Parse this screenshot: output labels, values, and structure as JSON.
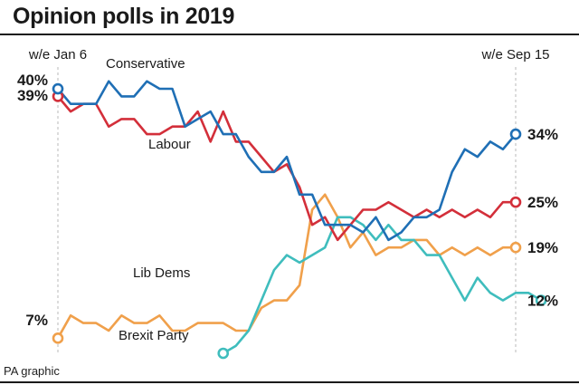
{
  "title": "Opinion polls in 2019",
  "source": "PA graphic",
  "chart_data": {
    "type": "line",
    "title": "Opinion polls in 2019",
    "x_start_label": "w/e Jan 6",
    "x_end_label": "w/e Sep 15",
    "weeks": 37,
    "ylim": [
      5,
      43
    ],
    "series": [
      {
        "name": "Conservative",
        "color": "#1f6fb5",
        "start": 0,
        "start_label": "40%",
        "end_label": "34%",
        "values": [
          40,
          38,
          38,
          38,
          41,
          39,
          39,
          41,
          40,
          40,
          35,
          36,
          37,
          34,
          34,
          31,
          29,
          29,
          31,
          26,
          26,
          22,
          22,
          22,
          21,
          23,
          20,
          21,
          23,
          23,
          24,
          29,
          32,
          31,
          33,
          32,
          34
        ]
      },
      {
        "name": "Labour",
        "color": "#d32f3a",
        "start": 0,
        "start_label": "39%",
        "end_label": "25%",
        "values": [
          39,
          37,
          38,
          38,
          35,
          36,
          36,
          34,
          34,
          35,
          35,
          37,
          33,
          37,
          33,
          33,
          31,
          29,
          30,
          27,
          22,
          23,
          20,
          22,
          24,
          24,
          25,
          24,
          23,
          24,
          23,
          24,
          23,
          24,
          23,
          25,
          25
        ]
      },
      {
        "name": "Lib Dems",
        "color": "#f0a04b",
        "start": 0,
        "start_label": "7%",
        "end_label": "19%",
        "values": [
          7,
          10,
          9,
          9,
          8,
          10,
          9,
          9,
          10,
          8,
          8,
          9,
          9,
          9,
          8,
          8,
          11,
          12,
          12,
          14,
          24,
          26,
          23,
          19,
          21,
          18,
          19,
          19,
          20,
          20,
          18,
          19,
          18,
          19,
          18,
          19,
          19
        ]
      },
      {
        "name": "Brexit Party",
        "color": "#3fbdbd",
        "start": 13,
        "start_label": "",
        "end_label": "12%",
        "values": [
          5,
          6,
          8,
          12,
          16,
          18,
          17,
          18,
          19,
          23,
          23,
          22,
          20,
          22,
          20,
          20,
          18,
          18,
          15,
          12,
          15,
          13,
          12,
          13,
          13,
          12
        ]
      }
    ]
  }
}
